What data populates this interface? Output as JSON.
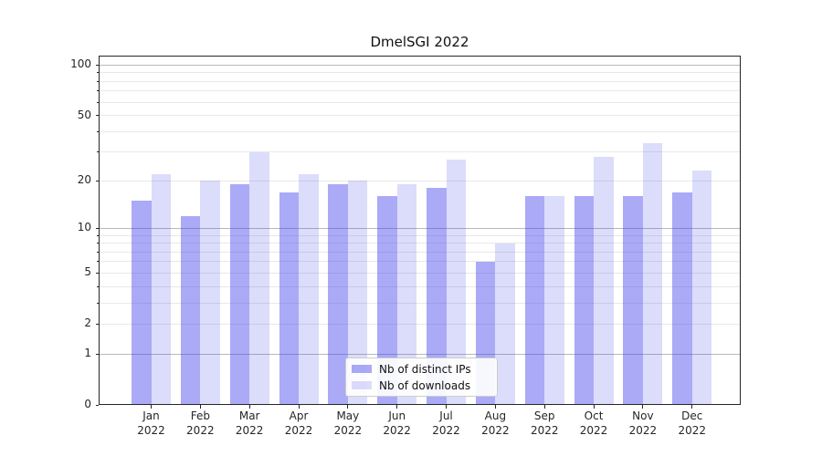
{
  "chart_data": {
    "type": "bar",
    "title": "DmelSGI 2022",
    "categories": [
      "Jan 2022",
      "Feb 2022",
      "Mar 2022",
      "Apr 2022",
      "May 2022",
      "Jun 2022",
      "Jul 2022",
      "Aug 2022",
      "Sep 2022",
      "Oct 2022",
      "Nov 2022",
      "Dec 2022"
    ],
    "month_labels": [
      "Jan",
      "Feb",
      "Mar",
      "Apr",
      "May",
      "Jun",
      "Jul",
      "Aug",
      "Sep",
      "Oct",
      "Nov",
      "Dec"
    ],
    "year_label": "2022",
    "series": [
      {
        "name": "Nb of distinct IPs",
        "key": "distinct-ips",
        "color": "rgba(70,70,235,0.46)",
        "values": [
          15,
          12,
          19,
          17,
          19,
          16,
          18,
          6,
          16,
          16,
          16,
          17
        ]
      },
      {
        "name": "Nb of downloads",
        "key": "downloads",
        "color": "rgba(70,70,235,0.19)",
        "values": [
          22,
          20,
          30,
          22,
          20,
          19,
          27,
          8,
          16,
          28,
          34,
          23
        ]
      }
    ],
    "yscale": "log10(value+1)",
    "ylim": [
      0,
      113
    ],
    "yticks": [
      100,
      50,
      20,
      10,
      5,
      2,
      1,
      0
    ],
    "major_gridlines": [
      1,
      10,
      100
    ],
    "minor_gridlines": [
      2,
      3,
      4,
      5,
      6,
      7,
      8,
      9,
      20,
      30,
      40,
      50,
      60,
      70,
      80,
      90
    ],
    "grid": true,
    "legend": {
      "position": "lower-center",
      "labels": [
        "Nb of distinct IPs",
        "Nb of downloads"
      ]
    }
  },
  "colors": {
    "bar_distinct_ips_composite": "#aaaaf6",
    "bar_downloads_composite": "#dcdcfb",
    "major_grid": "#b8b8b8",
    "minor_grid": "#e8e8e8",
    "axis": "#262626",
    "background": "#ffffff"
  }
}
